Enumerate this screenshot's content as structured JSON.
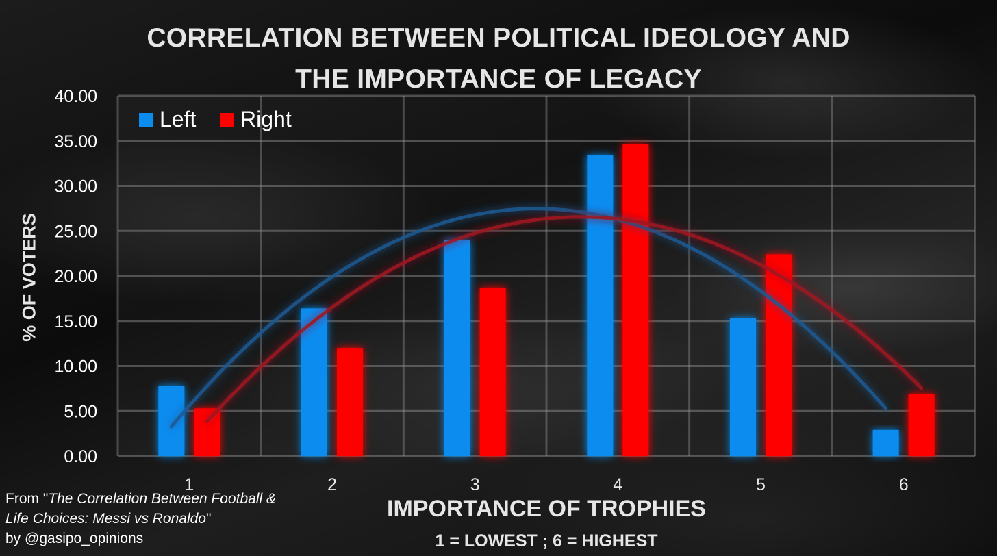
{
  "chart_data": {
    "type": "bar",
    "title_lines": [
      "CORRELATION BETWEEN POLITICAL IDEOLOGY AND",
      "THE IMPORTANCE OF LEGACY"
    ],
    "xlabel": "IMPORTANCE OF TROPHIES",
    "subtitle": "1 = LOWEST ; 6 = HIGHEST",
    "ylabel": "% OF VOTERS",
    "categories": [
      "1",
      "2",
      "3",
      "4",
      "5",
      "6"
    ],
    "y_ticks": [
      "0.00",
      "5.00",
      "10.00",
      "15.00",
      "20.00",
      "25.00",
      "30.00",
      "35.00",
      "40.00"
    ],
    "ylim": [
      0,
      40
    ],
    "grid": true,
    "legend_position": "top-left",
    "series": [
      {
        "name": "Left",
        "color": "#0b8cf0",
        "trend_color": "#1e5a94",
        "values": [
          7.8,
          16.4,
          24.0,
          33.4,
          15.3,
          2.9
        ]
      },
      {
        "name": "Right",
        "color": "#ff0000",
        "trend_color": "#a11420",
        "values": [
          5.3,
          12.0,
          18.7,
          34.6,
          22.4,
          6.9
        ]
      }
    ],
    "trendline": "polynomial",
    "source": {
      "prefix": "From \"",
      "italic": "The Correlation Between Football & Life Choices: Messi vs Ronaldo",
      "suffix": "\"",
      "byline": "by @gasipo_opinions"
    }
  }
}
